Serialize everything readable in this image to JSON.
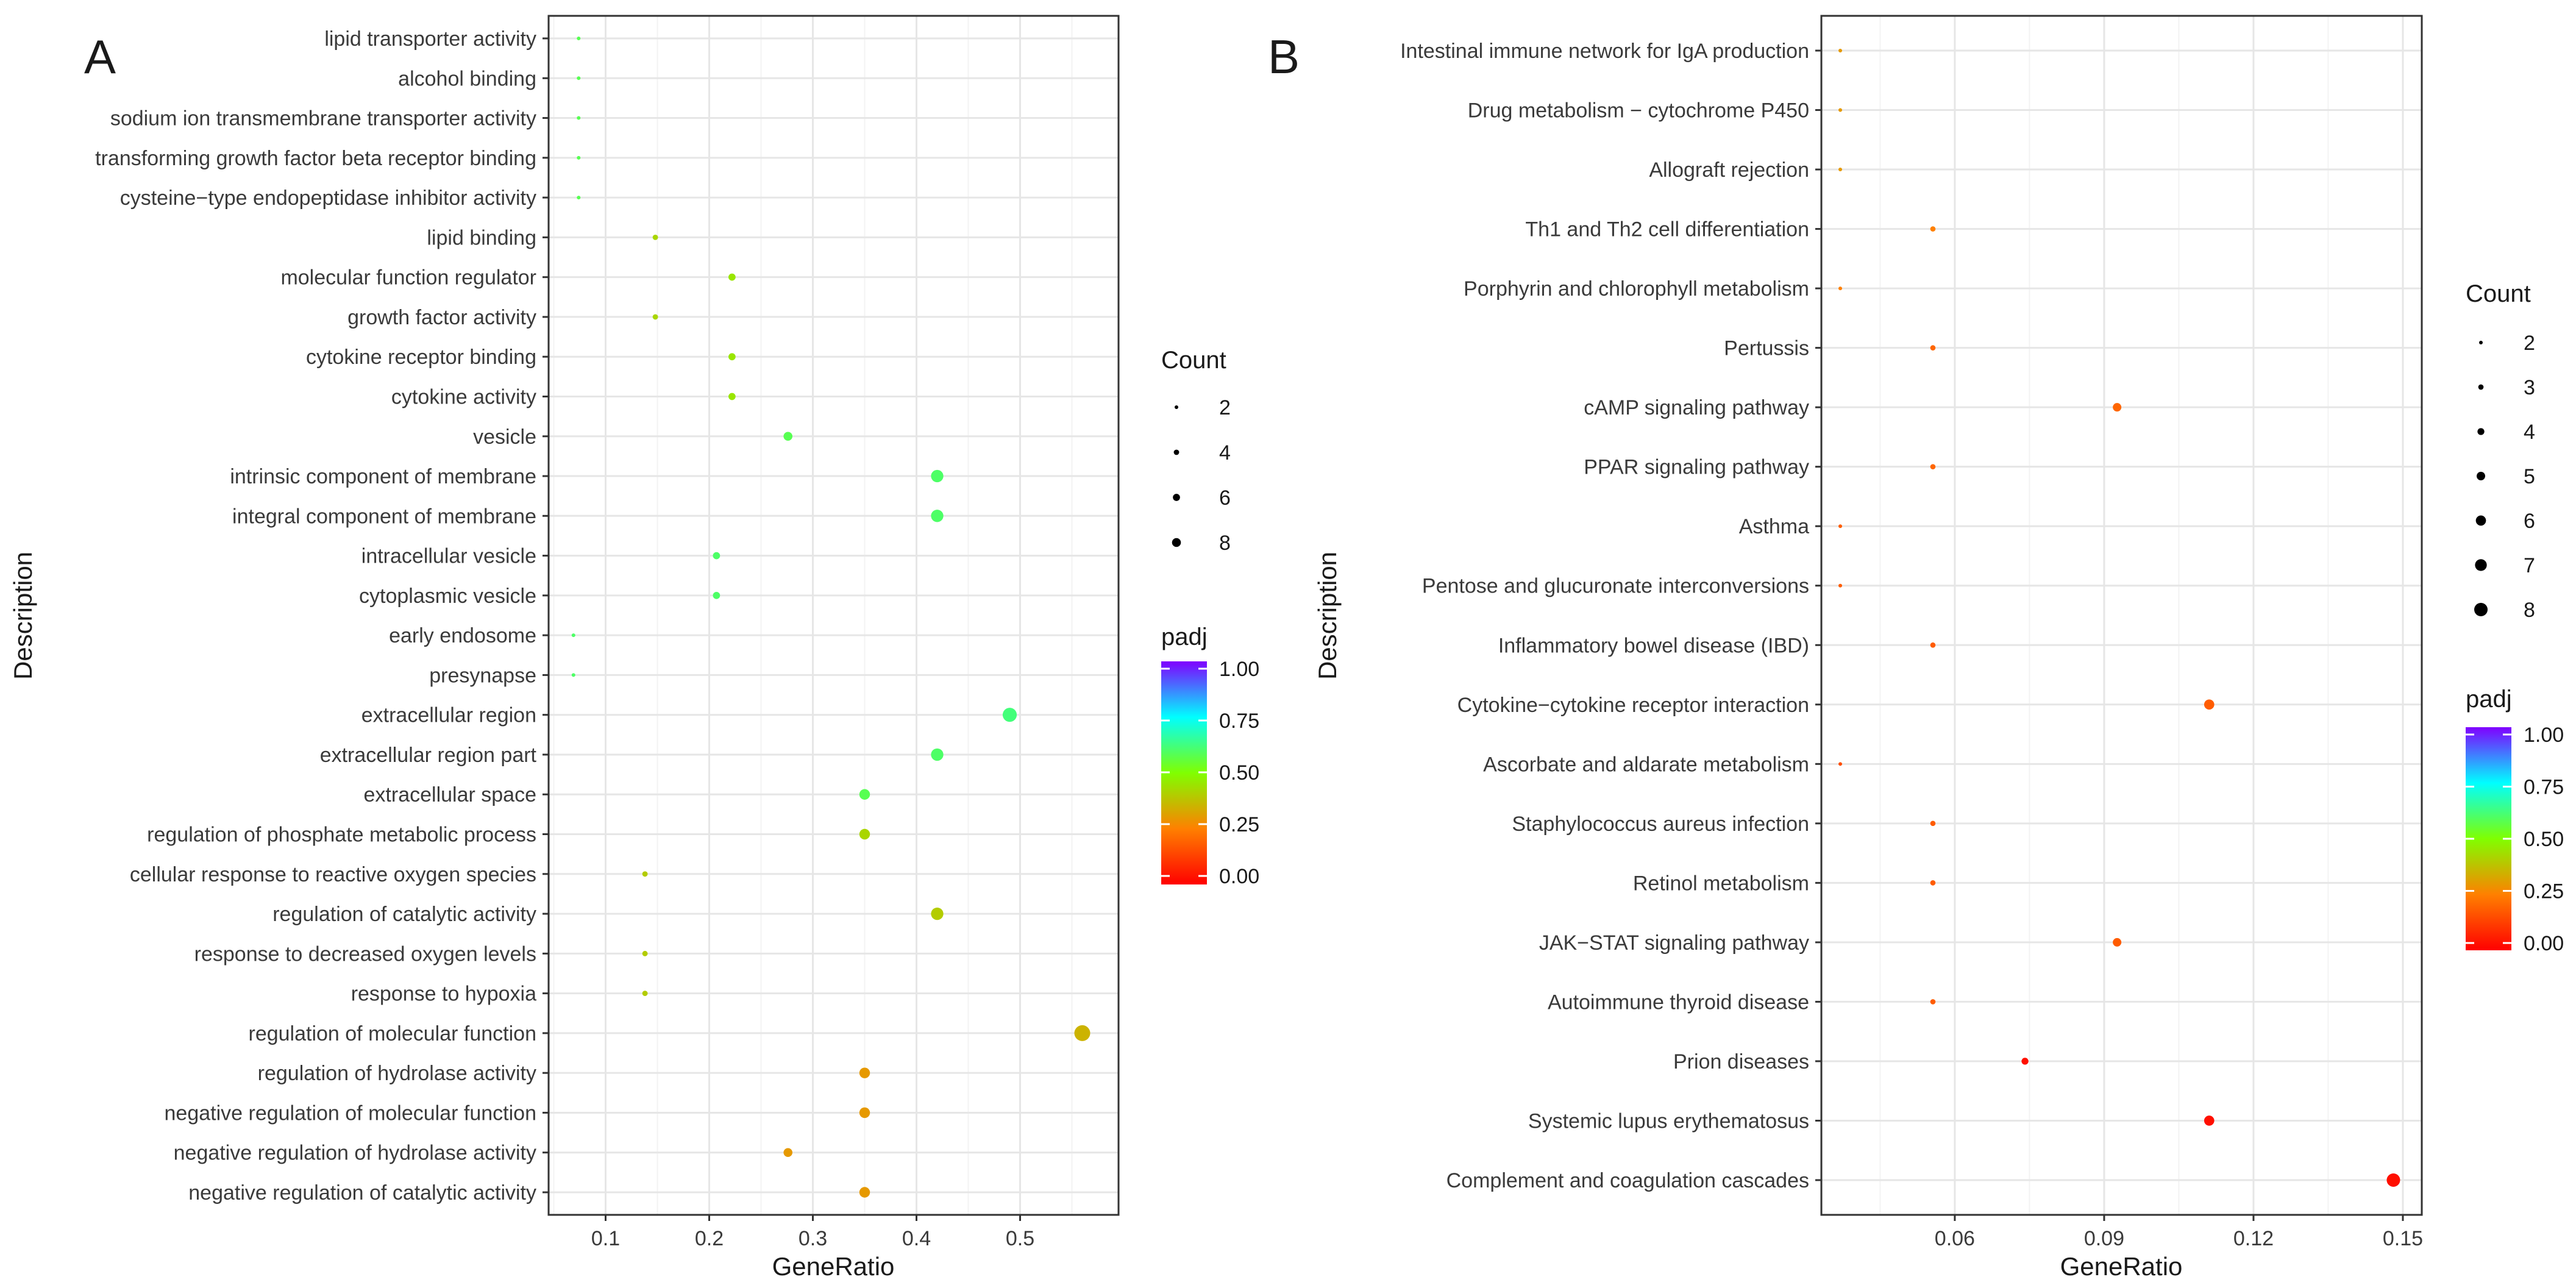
{
  "chart_data": [
    {
      "type": "scatter",
      "panel": "A",
      "xlabel": "GeneRatio",
      "ylabel": "Description",
      "xlim": [
        0.045,
        0.595
      ],
      "xticks": [
        0.1,
        0.2,
        0.3,
        0.4,
        0.5
      ],
      "xtick_labels": [
        "0.1",
        "0.2",
        "0.3",
        "0.4",
        "0.5"
      ],
      "grid": true,
      "categories": [
        "lipid transporter activity",
        "alcohol binding",
        "sodium ion transmembrane transporter activity",
        "transforming growth factor beta receptor binding",
        "cysteine−type endopeptidase inhibitor activity",
        "lipid binding",
        "molecular function regulator",
        "growth factor activity",
        "cytokine receptor binding",
        "cytokine activity",
        "vesicle",
        "intrinsic component of membrane",
        "integral component of membrane",
        "intracellular vesicle",
        "cytoplasmic vesicle",
        "early endosome",
        "presynapse",
        "extracellular region",
        "extracellular region part",
        "extracellular space",
        "regulation of phosphate metabolic process",
        "cellular response to reactive oxygen species",
        "regulation of catalytic activity",
        "response to decreased oxygen levels",
        "response to hypoxia",
        "regulation of molecular function",
        "regulation of hydrolase activity",
        "negative regulation of molecular function",
        "negative regulation of hydrolase activity",
        "negative regulation of catalytic activity"
      ],
      "gene_ratio": [
        0.074,
        0.074,
        0.074,
        0.074,
        0.074,
        0.148,
        0.222,
        0.148,
        0.222,
        0.222,
        0.276,
        0.42,
        0.42,
        0.207,
        0.207,
        0.069,
        0.069,
        0.49,
        0.42,
        0.35,
        0.35,
        0.138,
        0.42,
        0.138,
        0.138,
        0.56,
        0.35,
        0.35,
        0.276,
        0.35
      ],
      "count": [
        2,
        2,
        2,
        2,
        2,
        4,
        6,
        4,
        6,
        6,
        8,
        12,
        12,
        6,
        6,
        2,
        2,
        14,
        12,
        10,
        10,
        4,
        12,
        4,
        4,
        16,
        10,
        10,
        8,
        10
      ],
      "padj": [
        0.58,
        0.58,
        0.58,
        0.58,
        0.58,
        0.42,
        0.45,
        0.42,
        0.45,
        0.45,
        0.58,
        0.6,
        0.6,
        0.6,
        0.6,
        0.6,
        0.6,
        0.62,
        0.6,
        0.58,
        0.42,
        0.4,
        0.4,
        0.4,
        0.4,
        0.35,
        0.3,
        0.3,
        0.3,
        0.3
      ],
      "size_legend": {
        "title": "Count",
        "labels": [
          "2",
          "4",
          "6",
          "8"
        ],
        "values": [
          2,
          4,
          6,
          8
        ]
      },
      "color_legend": {
        "title": "padj",
        "labels": [
          "1.00",
          "0.75",
          "0.50",
          "0.25",
          "0.00"
        ],
        "values": [
          1.0,
          0.75,
          0.5,
          0.25,
          0.0
        ]
      }
    },
    {
      "type": "scatter",
      "panel": "B",
      "xlabel": "GeneRatio",
      "ylabel": "Description",
      "xlim": [
        0.0332,
        0.1538
      ],
      "xticks": [
        0.06,
        0.09,
        0.12,
        0.15
      ],
      "xtick_labels": [
        "0.06",
        "0.09",
        "0.12",
        "0.15"
      ],
      "grid": true,
      "categories": [
        "Intestinal immune network for IgA production",
        "Drug metabolism − cytochrome P450",
        "Allograft rejection",
        "Th1 and Th2 cell differentiation",
        "Porphyrin and chlorophyll metabolism",
        "Pertussis",
        "cAMP signaling pathway",
        "PPAR signaling pathway",
        "Asthma",
        "Pentose and glucuronate interconversions",
        "Inflammatory bowel disease (IBD)",
        "Cytokine−cytokine receptor interaction",
        "Ascorbate and aldarate metabolism",
        "Staphylococcus aureus infection",
        "Retinol metabolism",
        "JAK−STAT signaling pathway",
        "Autoimmune thyroid disease",
        "Prion diseases",
        "Systemic lupus erythematosus",
        "Complement and coagulation cascades"
      ],
      "gene_ratio": [
        0.037,
        0.037,
        0.037,
        0.0556,
        0.037,
        0.0556,
        0.0926,
        0.0556,
        0.037,
        0.037,
        0.0556,
        0.1111,
        0.037,
        0.0556,
        0.0556,
        0.0926,
        0.0556,
        0.0741,
        0.1111,
        0.1481
      ],
      "count": [
        2,
        2,
        2,
        3,
        2,
        3,
        5,
        3,
        2,
        2,
        3,
        6,
        2,
        3,
        3,
        5,
        3,
        4,
        6,
        8
      ],
      "padj": [
        0.3,
        0.3,
        0.3,
        0.25,
        0.25,
        0.2,
        0.2,
        0.2,
        0.18,
        0.18,
        0.18,
        0.18,
        0.15,
        0.18,
        0.18,
        0.18,
        0.18,
        0.03,
        0.03,
        0.03
      ],
      "size_legend": {
        "title": "Count",
        "labels": [
          "2",
          "3",
          "4",
          "5",
          "6",
          "7",
          "8"
        ],
        "values": [
          2,
          3,
          4,
          5,
          6,
          7,
          8
        ]
      },
      "color_legend": {
        "title": "padj",
        "labels": [
          "1.00",
          "0.75",
          "0.50",
          "0.25",
          "0.00"
        ],
        "values": [
          1.0,
          0.75,
          0.5,
          0.25,
          0.0
        ]
      }
    }
  ],
  "colors": {
    "grid": "#ebebeb",
    "panel_border": "#333333",
    "gradient": [
      "#ff0000",
      "#ff8000",
      "#80ff00",
      "#00ffff",
      "#8000ff"
    ]
  }
}
